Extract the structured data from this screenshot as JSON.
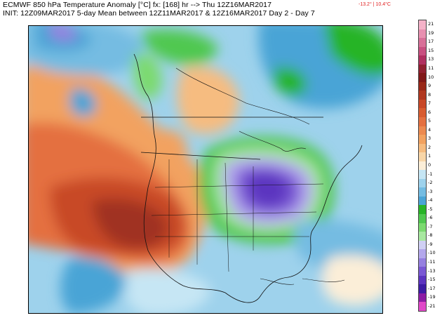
{
  "header": {
    "line1": "ECMWF 850 hPa Temperature Anomaly [°C] fx: [168] hr --> Thu 12Z16MAR2017",
    "line2": "INIT: 12Z09MAR2017 5-day Mean between 12Z11MAR2017 & 12Z16MAR2017   Day 2 - Day 7",
    "min_value": "-13.2°",
    "max_value": "10.4°C"
  },
  "colorbar": {
    "labels": [
      "21",
      "19",
      "17",
      "15",
      "13",
      "11",
      "10",
      "9",
      "8",
      "7",
      "6",
      "5",
      "4",
      "3",
      "2",
      "1",
      "0",
      "-1",
      "-2",
      "-3",
      "-4",
      "-5",
      "-6",
      "-7",
      "-8",
      "-9",
      "-10",
      "-11",
      "-13",
      "-15",
      "-17",
      "-19",
      "-21"
    ],
    "colors": [
      "#f4b2c8",
      "#e890b0",
      "#d87098",
      "#c85080",
      "#b03060",
      "#902030",
      "#801818",
      "#982818",
      "#b03820",
      "#c84828",
      "#d85c30",
      "#e47040",
      "#ec8a50",
      "#f2a260",
      "#f6bc80",
      "#f8d6a8",
      "#fbeed8",
      "#c6e6f4",
      "#9ed2ec",
      "#74bce2",
      "#4aa4d6",
      "#28b428",
      "#50c850",
      "#7cda70",
      "#a8e8a0",
      "#d0d0f4",
      "#b4a8ec",
      "#9680e0",
      "#7a58d4",
      "#5c34c0",
      "#3c1ca4",
      "#8c1ca4",
      "#e048c8"
    ]
  }
}
